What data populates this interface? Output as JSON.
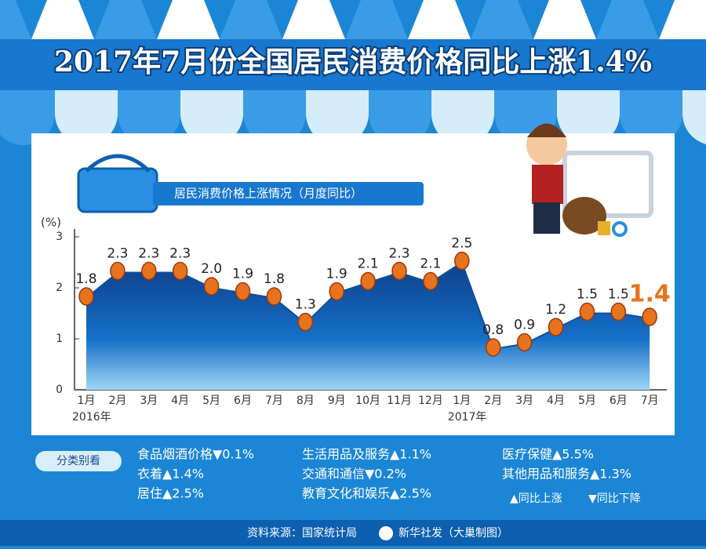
{
  "title": "2017年7月份全国居民消费价格同比上涨1.4%",
  "chart_data": {
    "type": "area",
    "subtitle": "居民消费价格上涨情况（月度同比）",
    "y_label": "(%)",
    "categories": [
      "1月",
      "2月",
      "3月",
      "4月",
      "5月",
      "6月",
      "7月",
      "8月",
      "9月",
      "10月",
      "11月",
      "12月",
      "1月",
      "2月",
      "3月",
      "4月",
      "5月",
      "6月",
      "7月"
    ],
    "year_labels": [
      "2016年",
      null,
      null,
      null,
      null,
      null,
      null,
      null,
      null,
      null,
      null,
      null,
      "2017年",
      null,
      null,
      null,
      null,
      null,
      null
    ],
    "values": [
      1.8,
      2.3,
      2.3,
      2.3,
      2.0,
      1.9,
      1.8,
      1.3,
      1.9,
      2.1,
      2.3,
      2.1,
      2.5,
      0.8,
      0.9,
      1.2,
      1.5,
      1.5,
      1.4
    ],
    "value_labels": [
      "1.8",
      "2.3",
      "2.3",
      "2.3",
      "2.0",
      "1.9",
      "1.8",
      "1.3",
      "1.9",
      "2.1",
      "2.3",
      "2.1",
      "2.5",
      "0.8",
      "0.9",
      "1.2",
      "1.5",
      "1.5",
      "1.4"
    ],
    "color": "#0d4f9e",
    "ylim": [
      0,
      3
    ],
    "yticks": [
      0,
      1,
      2,
      3
    ]
  },
  "breakdown": {
    "heading": "分类别看",
    "items": [
      "食品烟酒价格▼0.1%",
      "衣着▲1.4%",
      "居住▲2.5%",
      "生活用品及服务▲1.1%",
      "交通和通信▼0.2%",
      "教育文化和娱乐▲2.5%",
      "医疗保健▲5.5%",
      "其他用品和服务▲1.3%"
    ],
    "legend": [
      "▲同比上涨",
      "▼同比下降"
    ]
  },
  "footer": {
    "source": "资料来源：国家统计局",
    "credit": "新华社发（大巢制图）"
  }
}
